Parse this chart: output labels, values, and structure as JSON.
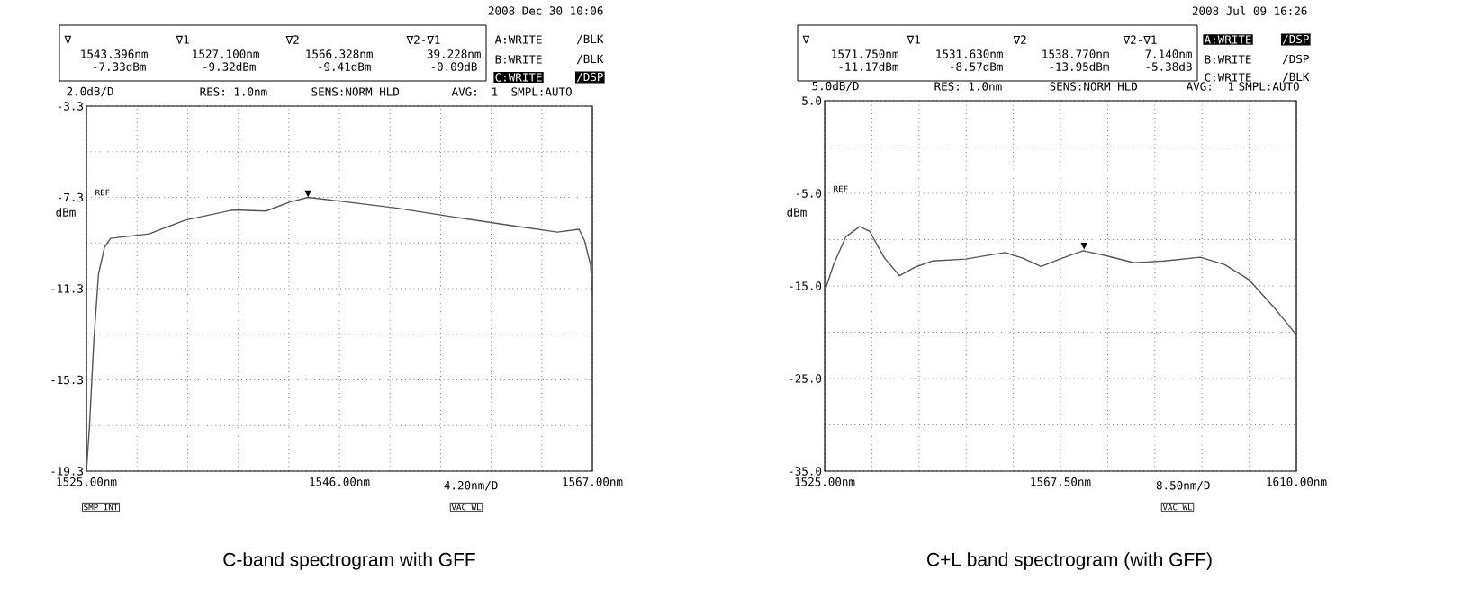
{
  "chart_data": [
    {
      "type": "line",
      "title": "C-band spectrogram with GFF",
      "xlim": [
        1525,
        1567
      ],
      "ylim": [
        -19.3,
        -3.3
      ],
      "xticks": [
        {
          "value": 1525,
          "label": "1525.00nm"
        },
        {
          "value": 1529.2,
          "label": null
        },
        {
          "value": 1533.4,
          "label": null
        },
        {
          "value": 1537.6,
          "label": null
        },
        {
          "value": 1541.8,
          "label": null
        },
        {
          "value": 1546,
          "label": "1546.00nm"
        },
        {
          "value": 1550.2,
          "label": null
        },
        {
          "value": 1554.4,
          "label": null
        },
        {
          "value": 1558.6,
          "label": null
        },
        {
          "value": 1562.8,
          "label": null
        },
        {
          "value": 1567,
          "label": "1567.00nm"
        }
      ],
      "xlabel": "4.20nm/D",
      "yticks": [
        {
          "value": -3.3,
          "label": "-3.3"
        },
        {
          "value": -5.3,
          "label": null
        },
        {
          "value": -7.3,
          "label": "-7.3"
        },
        {
          "value": -9.3,
          "label": null
        },
        {
          "value": -11.3,
          "label": "-11.3"
        },
        {
          "value": -13.3,
          "label": null
        },
        {
          "value": -15.3,
          "label": "-15.3"
        },
        {
          "value": -17.3,
          "label": null
        },
        {
          "value": -19.3,
          "label": "-19.3"
        }
      ],
      "grid": true,
      "series": [
        {
          "color": "#555555",
          "x": [
            1525.0,
            1525.25,
            1525.6,
            1526.0,
            1526.5,
            1527.0,
            1530.2,
            1533.2,
            1537.2,
            1539.9,
            1541.9,
            1543.4,
            1546.6,
            1550.7,
            1555.6,
            1560.6,
            1564.1,
            1565.9,
            1566.35,
            1566.85,
            1567.0
          ],
          "values": [
            -19.3,
            -17.35,
            -13.68,
            -10.66,
            -9.48,
            -9.1,
            -8.9,
            -8.3,
            -7.85,
            -7.9,
            -7.5,
            -7.3,
            -7.5,
            -7.77,
            -8.17,
            -8.56,
            -8.82,
            -8.7,
            -9.2,
            -10.27,
            -11.45
          ]
        }
      ],
      "annotations": [
        "2008 Dec 30 10:06",
        "∇",
        "1543.396nm",
        "-7.33dBm",
        "∇1",
        "1527.100nm",
        "-9.32dBm",
        "∇2",
        "1566.328nm",
        "-9.41dBm",
        "∇2-∇1",
        "39.228nm",
        "-0.09dB",
        "A:WRITE",
        "/BLK",
        "B:WRITE",
        "/BLK",
        "C:WRITE",
        "/DSP",
        "2.0dB/D",
        "RES: 1.0nm",
        "SENS:NORM HLD",
        "AVG:",
        "1",
        "SMPL:AUTO",
        "REF",
        "dBm",
        "SMP INT",
        "VAC WL",
        {
          "text": "▼",
          "x": 1543.396,
          "y": -7.33
        }
      ]
    },
    {
      "type": "line",
      "title": "C+L band spectrogram (with GFF)",
      "xlim": [
        1525,
        1610
      ],
      "ylim": [
        -35,
        5
      ],
      "xticks": [
        {
          "value": 1525,
          "label": "1525.00nm"
        },
        {
          "value": 1533.5,
          "label": null
        },
        {
          "value": 1542,
          "label": null
        },
        {
          "value": 1550.5,
          "label": null
        },
        {
          "value": 1559,
          "label": null
        },
        {
          "value": 1567.5,
          "label": "1567.50nm"
        },
        {
          "value": 1576,
          "label": null
        },
        {
          "value": 1584.5,
          "label": null
        },
        {
          "value": 1593,
          "label": null
        },
        {
          "value": 1601.5,
          "label": null
        },
        {
          "value": 1610,
          "label": "1610.00nm"
        }
      ],
      "xlabel": "8.50nm/D",
      "yticks": [
        {
          "value": 5,
          "label": "5.0"
        },
        {
          "value": 0,
          "label": null
        },
        {
          "value": -5,
          "label": "-5.0"
        },
        {
          "value": -10,
          "label": null
        },
        {
          "value": -15,
          "label": "-15.0"
        },
        {
          "value": -20,
          "label": null
        },
        {
          "value": -25,
          "label": "-25.0"
        },
        {
          "value": -30,
          "label": null
        },
        {
          "value": -35,
          "label": "-35.0"
        }
      ],
      "grid": true,
      "series": [
        {
          "color": "#555555",
          "x": [
            1525,
            1526.6,
            1528.8,
            1531.3,
            1533.1,
            1535.8,
            1538.5,
            1541.2,
            1544.5,
            1550.4,
            1557.5,
            1560.7,
            1564.0,
            1567.8,
            1571.6,
            1575.4,
            1580.8,
            1586.2,
            1592.7,
            1597.1,
            1601.4,
            1605.8,
            1610
          ],
          "values": [
            -15.6,
            -12.7,
            -9.7,
            -8.6,
            -9.1,
            -12.0,
            -13.9,
            -13.0,
            -12.3,
            -12.1,
            -11.4,
            -12.0,
            -12.9,
            -12.0,
            -11.2,
            -11.7,
            -12.5,
            -12.3,
            -11.9,
            -12.7,
            -14.3,
            -17.2,
            -20.3
          ]
        }
      ],
      "annotations": [
        "2008 Jul 09 16:26",
        "∇",
        "1571.750nm",
        "-11.17dBm",
        "∇1",
        "1531.630nm",
        "-8.57dBm",
        "∇2",
        "1538.770nm",
        "-13.95dBm",
        "∇2-∇1",
        "7.140nm",
        "-5.38dB",
        "A:WRITE",
        "/DSP",
        "B:WRITE",
        "/DSP",
        "C:WRITE",
        "/BLK",
        "5.0dB/D",
        "RES: 1.0nm",
        "SENS:NORM HLD",
        "AVG:",
        "1",
        "SMPL:AUTO",
        "REF",
        "dBm",
        "VAC WL",
        {
          "text": "▼",
          "x": 1571.75,
          "y": -11.17
        }
      ]
    }
  ]
}
